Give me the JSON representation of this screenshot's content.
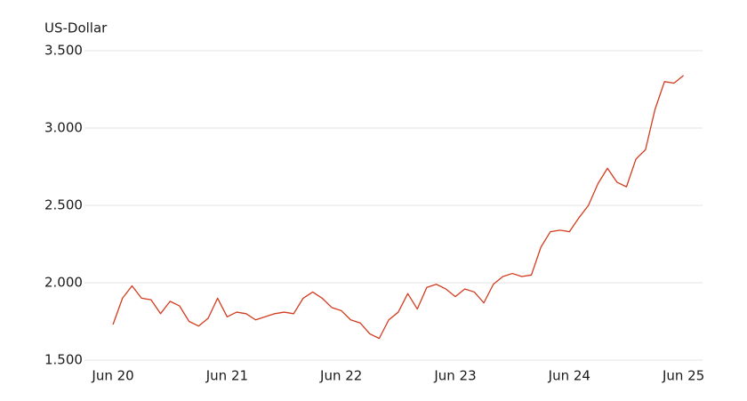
{
  "chart_data": {
    "type": "line",
    "y_label": "US-Dollar",
    "x": [
      "2020-06",
      "2020-07",
      "2020-08",
      "2020-09",
      "2020-10",
      "2020-11",
      "2020-12",
      "2021-01",
      "2021-02",
      "2021-03",
      "2021-04",
      "2021-05",
      "2021-06",
      "2021-07",
      "2021-08",
      "2021-09",
      "2021-10",
      "2021-11",
      "2021-12",
      "2022-01",
      "2022-02",
      "2022-03",
      "2022-04",
      "2022-05",
      "2022-06",
      "2022-07",
      "2022-08",
      "2022-09",
      "2022-10",
      "2022-11",
      "2022-12",
      "2023-01",
      "2023-02",
      "2023-03",
      "2023-04",
      "2023-05",
      "2023-06",
      "2023-07",
      "2023-08",
      "2023-09",
      "2023-10",
      "2023-11",
      "2023-12",
      "2024-01",
      "2024-02",
      "2024-03",
      "2024-04",
      "2024-05",
      "2024-06",
      "2024-07",
      "2024-08",
      "2024-09",
      "2024-10",
      "2024-11",
      "2024-12",
      "2025-01",
      "2025-02",
      "2025-03",
      "2025-04",
      "2025-05",
      "2025-06"
    ],
    "series": [
      {
        "color": "#d23c1e",
        "values": [
          1730,
          1900,
          1980,
          1900,
          1890,
          1800,
          1880,
          1850,
          1750,
          1720,
          1770,
          1900,
          1780,
          1810,
          1800,
          1760,
          1780,
          1800,
          1810,
          1800,
          1900,
          1940,
          1900,
          1840,
          1820,
          1760,
          1740,
          1670,
          1640,
          1760,
          1810,
          1930,
          1830,
          1970,
          1990,
          1960,
          1910,
          1960,
          1940,
          1870,
          1990,
          2040,
          2060,
          2040,
          2050,
          2230,
          2330,
          2340,
          2330,
          2420,
          2500,
          2640,
          2740,
          2650,
          2620,
          2800,
          2860,
          3120,
          3300,
          3290,
          3340
        ]
      }
    ],
    "xlim": [
      "2020-03",
      "2025-08"
    ],
    "xticks": [
      {
        "value": "2020-06",
        "label": "Jun 20"
      },
      {
        "value": "2021-06",
        "label": "Jun 21"
      },
      {
        "value": "2022-06",
        "label": "Jun 22"
      },
      {
        "value": "2023-06",
        "label": "Jun 23"
      },
      {
        "value": "2024-06",
        "label": "Jun 24"
      },
      {
        "value": "2025-06",
        "label": "Jun 25"
      }
    ],
    "ylim": [
      1500,
      3500
    ],
    "yticks": [
      {
        "value": 1500,
        "label": "1.500"
      },
      {
        "value": 2000,
        "label": "2.000"
      },
      {
        "value": 2500,
        "label": "2.500"
      },
      {
        "value": 3000,
        "label": "3.000"
      },
      {
        "value": 3500,
        "label": "3.500"
      }
    ],
    "grid": true
  }
}
